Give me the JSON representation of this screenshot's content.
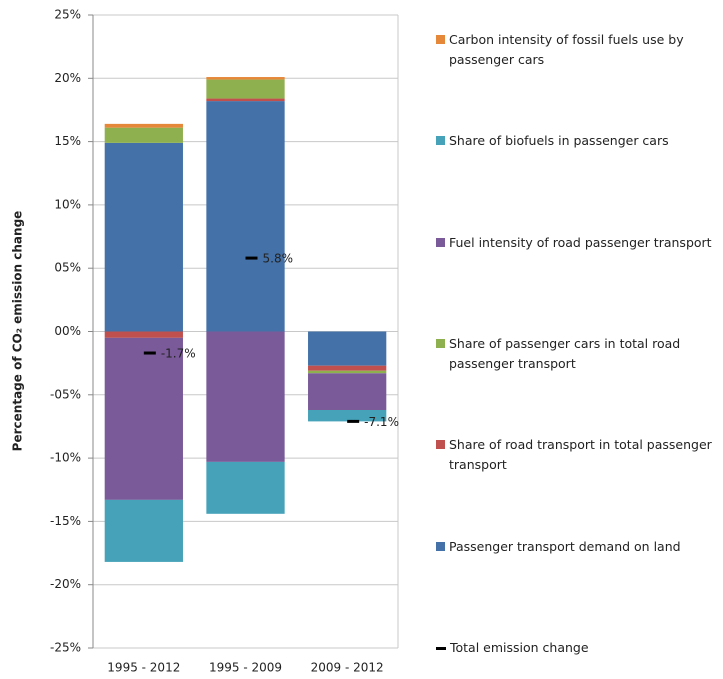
{
  "chart_data": {
    "type": "stacked-bar",
    "y_label": "Percentage of CO₂ emission change",
    "categories": [
      "1995 - 2012",
      "1995 - 2009",
      "2009 - 2012"
    ],
    "series": [
      {
        "name": "Passenger transport demand on land",
        "color": "#4472a8",
        "values": [
          14.9,
          18.2,
          -2.7
        ]
      },
      {
        "name": "Share of road transport in total passenger transport",
        "color": "#c0504d",
        "values": [
          -0.5,
          0.2,
          -0.4
        ]
      },
      {
        "name": "Share of passenger cars in total road passenger transport",
        "color": "#8fb04f",
        "values": [
          1.2,
          1.5,
          -0.2
        ]
      },
      {
        "name": "Fuel intensity of road passenger transport",
        "color": "#7a5a98",
        "values": [
          -12.8,
          -10.3,
          -2.9
        ]
      },
      {
        "name": "Share of biofuels in passenger cars",
        "color": "#45a2b8",
        "values": [
          -4.9,
          -4.1,
          -0.9
        ]
      },
      {
        "name": "Carbon intensity of fossil fuels use by passenger cars",
        "color": "#e5883a",
        "values": [
          0.3,
          0.2,
          0
        ]
      }
    ],
    "totals": {
      "name": "Total emission change",
      "color": "#000000",
      "values": [
        -1.7,
        5.8,
        -7.1
      ],
      "value_labels": [
        "-1.7%",
        "5.8%",
        "-7.1%"
      ]
    },
    "ylim": [
      -25,
      25
    ],
    "yticks": [
      {
        "value": -25,
        "label": "-25%"
      },
      {
        "value": -20,
        "label": "-20%"
      },
      {
        "value": -15,
        "label": "-15%"
      },
      {
        "value": -10,
        "label": "-10%"
      },
      {
        "value": -5,
        "label": "-05%"
      },
      {
        "value": 0,
        "label": "00%"
      },
      {
        "value": 5,
        "label": "05%"
      },
      {
        "value": 10,
        "label": "10%"
      },
      {
        "value": 15,
        "label": "15%"
      },
      {
        "value": 20,
        "label": "20%"
      },
      {
        "value": 25,
        "label": "25%"
      }
    ],
    "grid": true
  }
}
